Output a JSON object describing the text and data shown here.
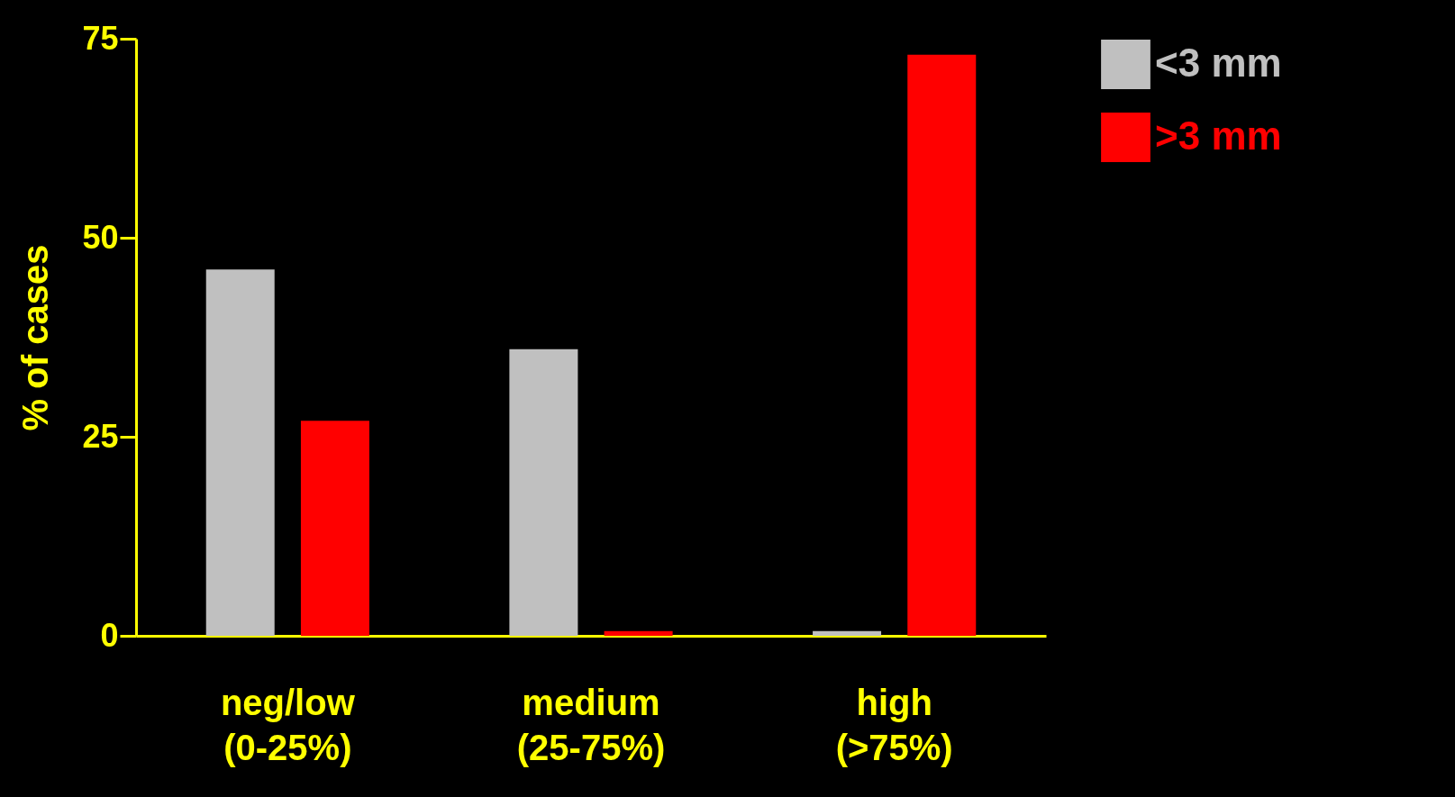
{
  "chart_data": {
    "type": "bar",
    "ylabel": "% of cases",
    "categories": [
      "neg/low\n(0-25%)",
      "medium\n(25-75%)",
      "high\n(>75%)"
    ],
    "series": [
      {
        "name": "<3 mm",
        "color": "#c0c0c0",
        "values": [
          46,
          36,
          0.6
        ]
      },
      {
        "name": ">3 mm",
        "color": "#ff0000",
        "values": [
          27,
          0.6,
          73
        ]
      }
    ],
    "ylim": [
      0,
      75
    ],
    "yticks": [
      0,
      25,
      50,
      75
    ],
    "grid": false,
    "legend": "top right"
  }
}
